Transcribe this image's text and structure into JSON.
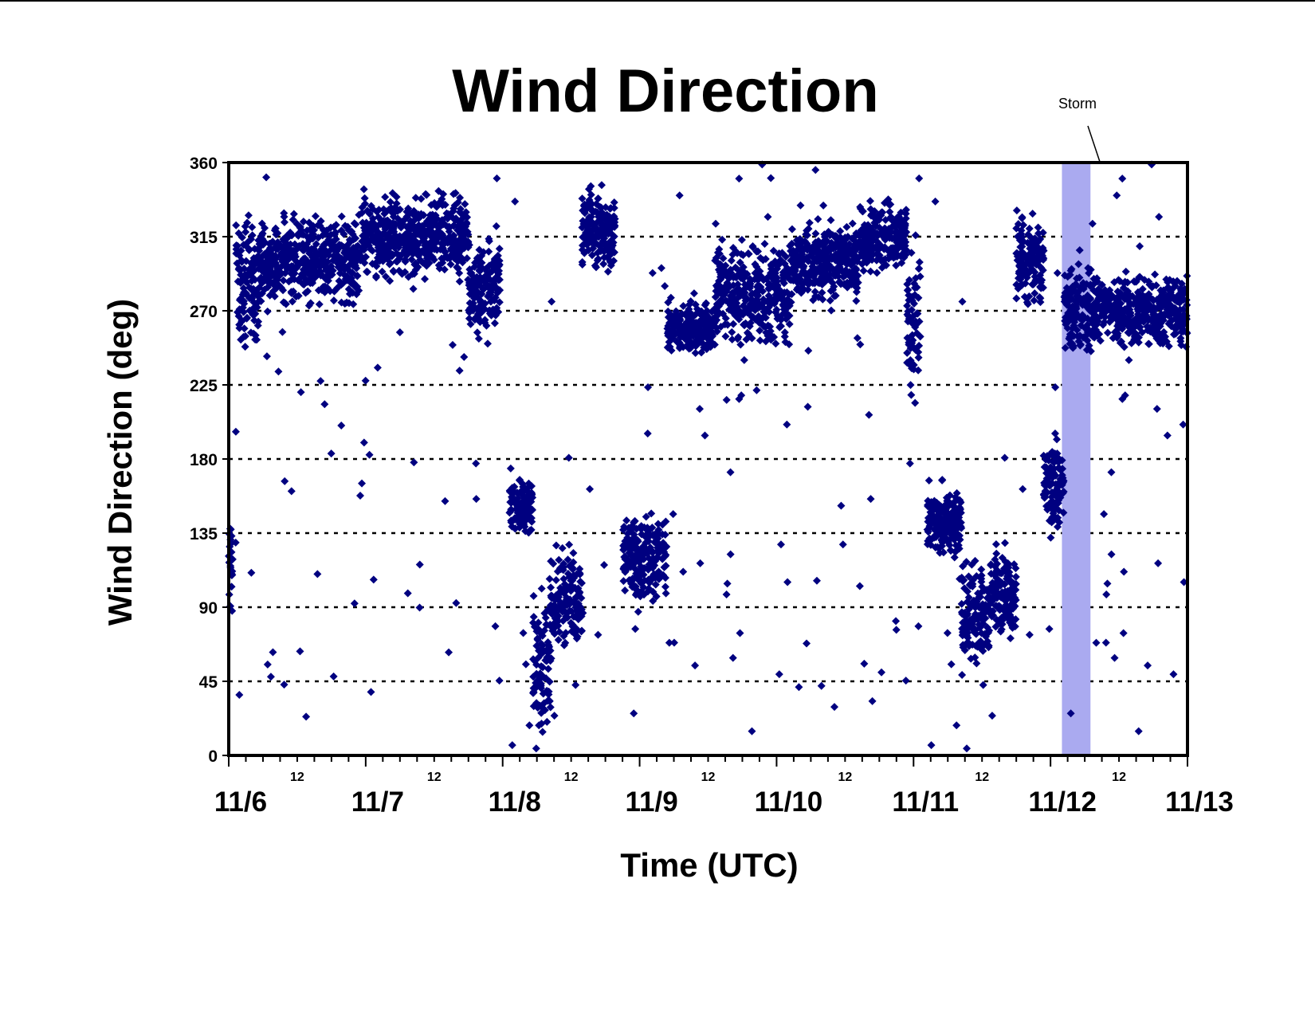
{
  "chart_data": {
    "type": "scatter",
    "title": "Wind Direction",
    "xlabel": "Time (UTC)",
    "ylabel": "Wind Direction (deg)",
    "ylim": [
      0,
      360
    ],
    "yticks": [
      "0",
      "45",
      "90",
      "135",
      "180",
      "225",
      "270",
      "315",
      "360"
    ],
    "xlim": [
      "11/6 00:00",
      "11/13 00:00"
    ],
    "x_major_ticks": [
      "11/6",
      "11/7",
      "11/8",
      "11/9",
      "11/10",
      "11/11",
      "11/12",
      "11/13"
    ],
    "x_minor_label": "12",
    "grid": "horizontal dotted",
    "marker_color": "#000080",
    "annotation": {
      "label": "Storm",
      "start": "11/12 02:00",
      "end": "11/12 07:00",
      "band_color": "#aaaaf0"
    },
    "series": [
      {
        "x_unit": "day of November (decimal)",
        "clusters": [
          {
            "day_start": 6.0,
            "day_end": 6.03,
            "center": 115,
            "spread": 30
          },
          {
            "day_start": 6.05,
            "day_end": 6.22,
            "center": 285,
            "spread": 30
          },
          {
            "day_start": 6.22,
            "day_end": 6.95,
            "center": 300,
            "spread": 22
          },
          {
            "day_start": 6.95,
            "day_end": 7.75,
            "center": 315,
            "spread": 20
          },
          {
            "day_start": 7.75,
            "day_end": 7.98,
            "center": 285,
            "spread": 25
          },
          {
            "day_start": 8.05,
            "day_end": 8.22,
            "center": 150,
            "spread": 18
          },
          {
            "day_start": 8.22,
            "day_end": 8.35,
            "center": 55,
            "spread": 35
          },
          {
            "day_start": 8.35,
            "day_end": 8.58,
            "center": 95,
            "spread": 25
          },
          {
            "day_start": 8.58,
            "day_end": 8.82,
            "center": 320,
            "spread": 20
          },
          {
            "day_start": 8.88,
            "day_end": 9.2,
            "center": 120,
            "spread": 22
          },
          {
            "day_start": 9.2,
            "day_end": 9.55,
            "center": 260,
            "spread": 14
          },
          {
            "day_start": 9.55,
            "day_end": 10.1,
            "center": 280,
            "spread": 25
          },
          {
            "day_start": 10.1,
            "day_end": 10.6,
            "center": 300,
            "spread": 22
          },
          {
            "day_start": 10.6,
            "day_end": 10.95,
            "center": 315,
            "spread": 18
          },
          {
            "day_start": 10.95,
            "day_end": 11.05,
            "center": 270,
            "spread": 40
          },
          {
            "day_start": 11.1,
            "day_end": 11.35,
            "center": 140,
            "spread": 20
          },
          {
            "day_start": 11.35,
            "day_end": 11.55,
            "center": 85,
            "spread": 25
          },
          {
            "day_start": 11.55,
            "day_end": 11.75,
            "center": 100,
            "spread": 22
          },
          {
            "day_start": 11.75,
            "day_end": 11.95,
            "center": 300,
            "spread": 22
          },
          {
            "day_start": 11.95,
            "day_end": 12.1,
            "center": 165,
            "spread": 22
          },
          {
            "day_start": 12.1,
            "day_end": 12.3,
            "center": 270,
            "spread": 25
          },
          {
            "day_start": 12.3,
            "day_end": 13.0,
            "center": 270,
            "spread": 18
          }
        ]
      }
    ]
  }
}
